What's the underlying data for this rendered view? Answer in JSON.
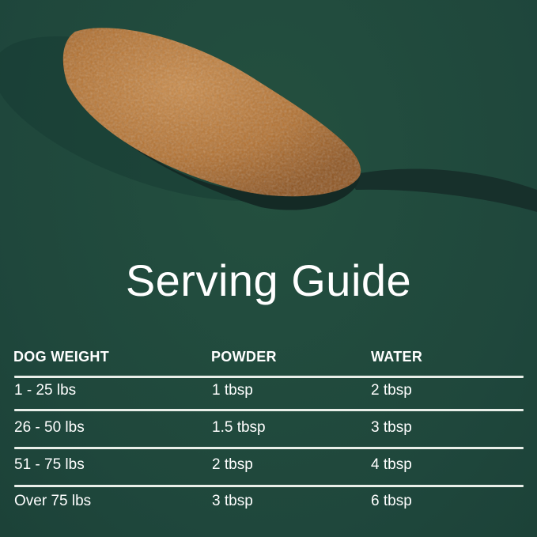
{
  "title": "Serving Guide",
  "table": {
    "headers": [
      "DOG WEIGHT",
      "POWDER",
      "WATER"
    ],
    "rows": [
      [
        "1 - 25 lbs",
        "1 tbsp",
        "2 tbsp"
      ],
      [
        "26 - 50 lbs",
        "1.5 tbsp",
        "3 tbsp"
      ],
      [
        "51 - 75 lbs",
        "2 tbsp",
        "4 tbsp"
      ],
      [
        "Over 75 lbs",
        "3 tbsp",
        "6 tbsp"
      ]
    ]
  },
  "colors": {
    "background": "#214a3f",
    "food": "#b9773a",
    "spoon": "#17302b",
    "text": "#ffffff"
  }
}
